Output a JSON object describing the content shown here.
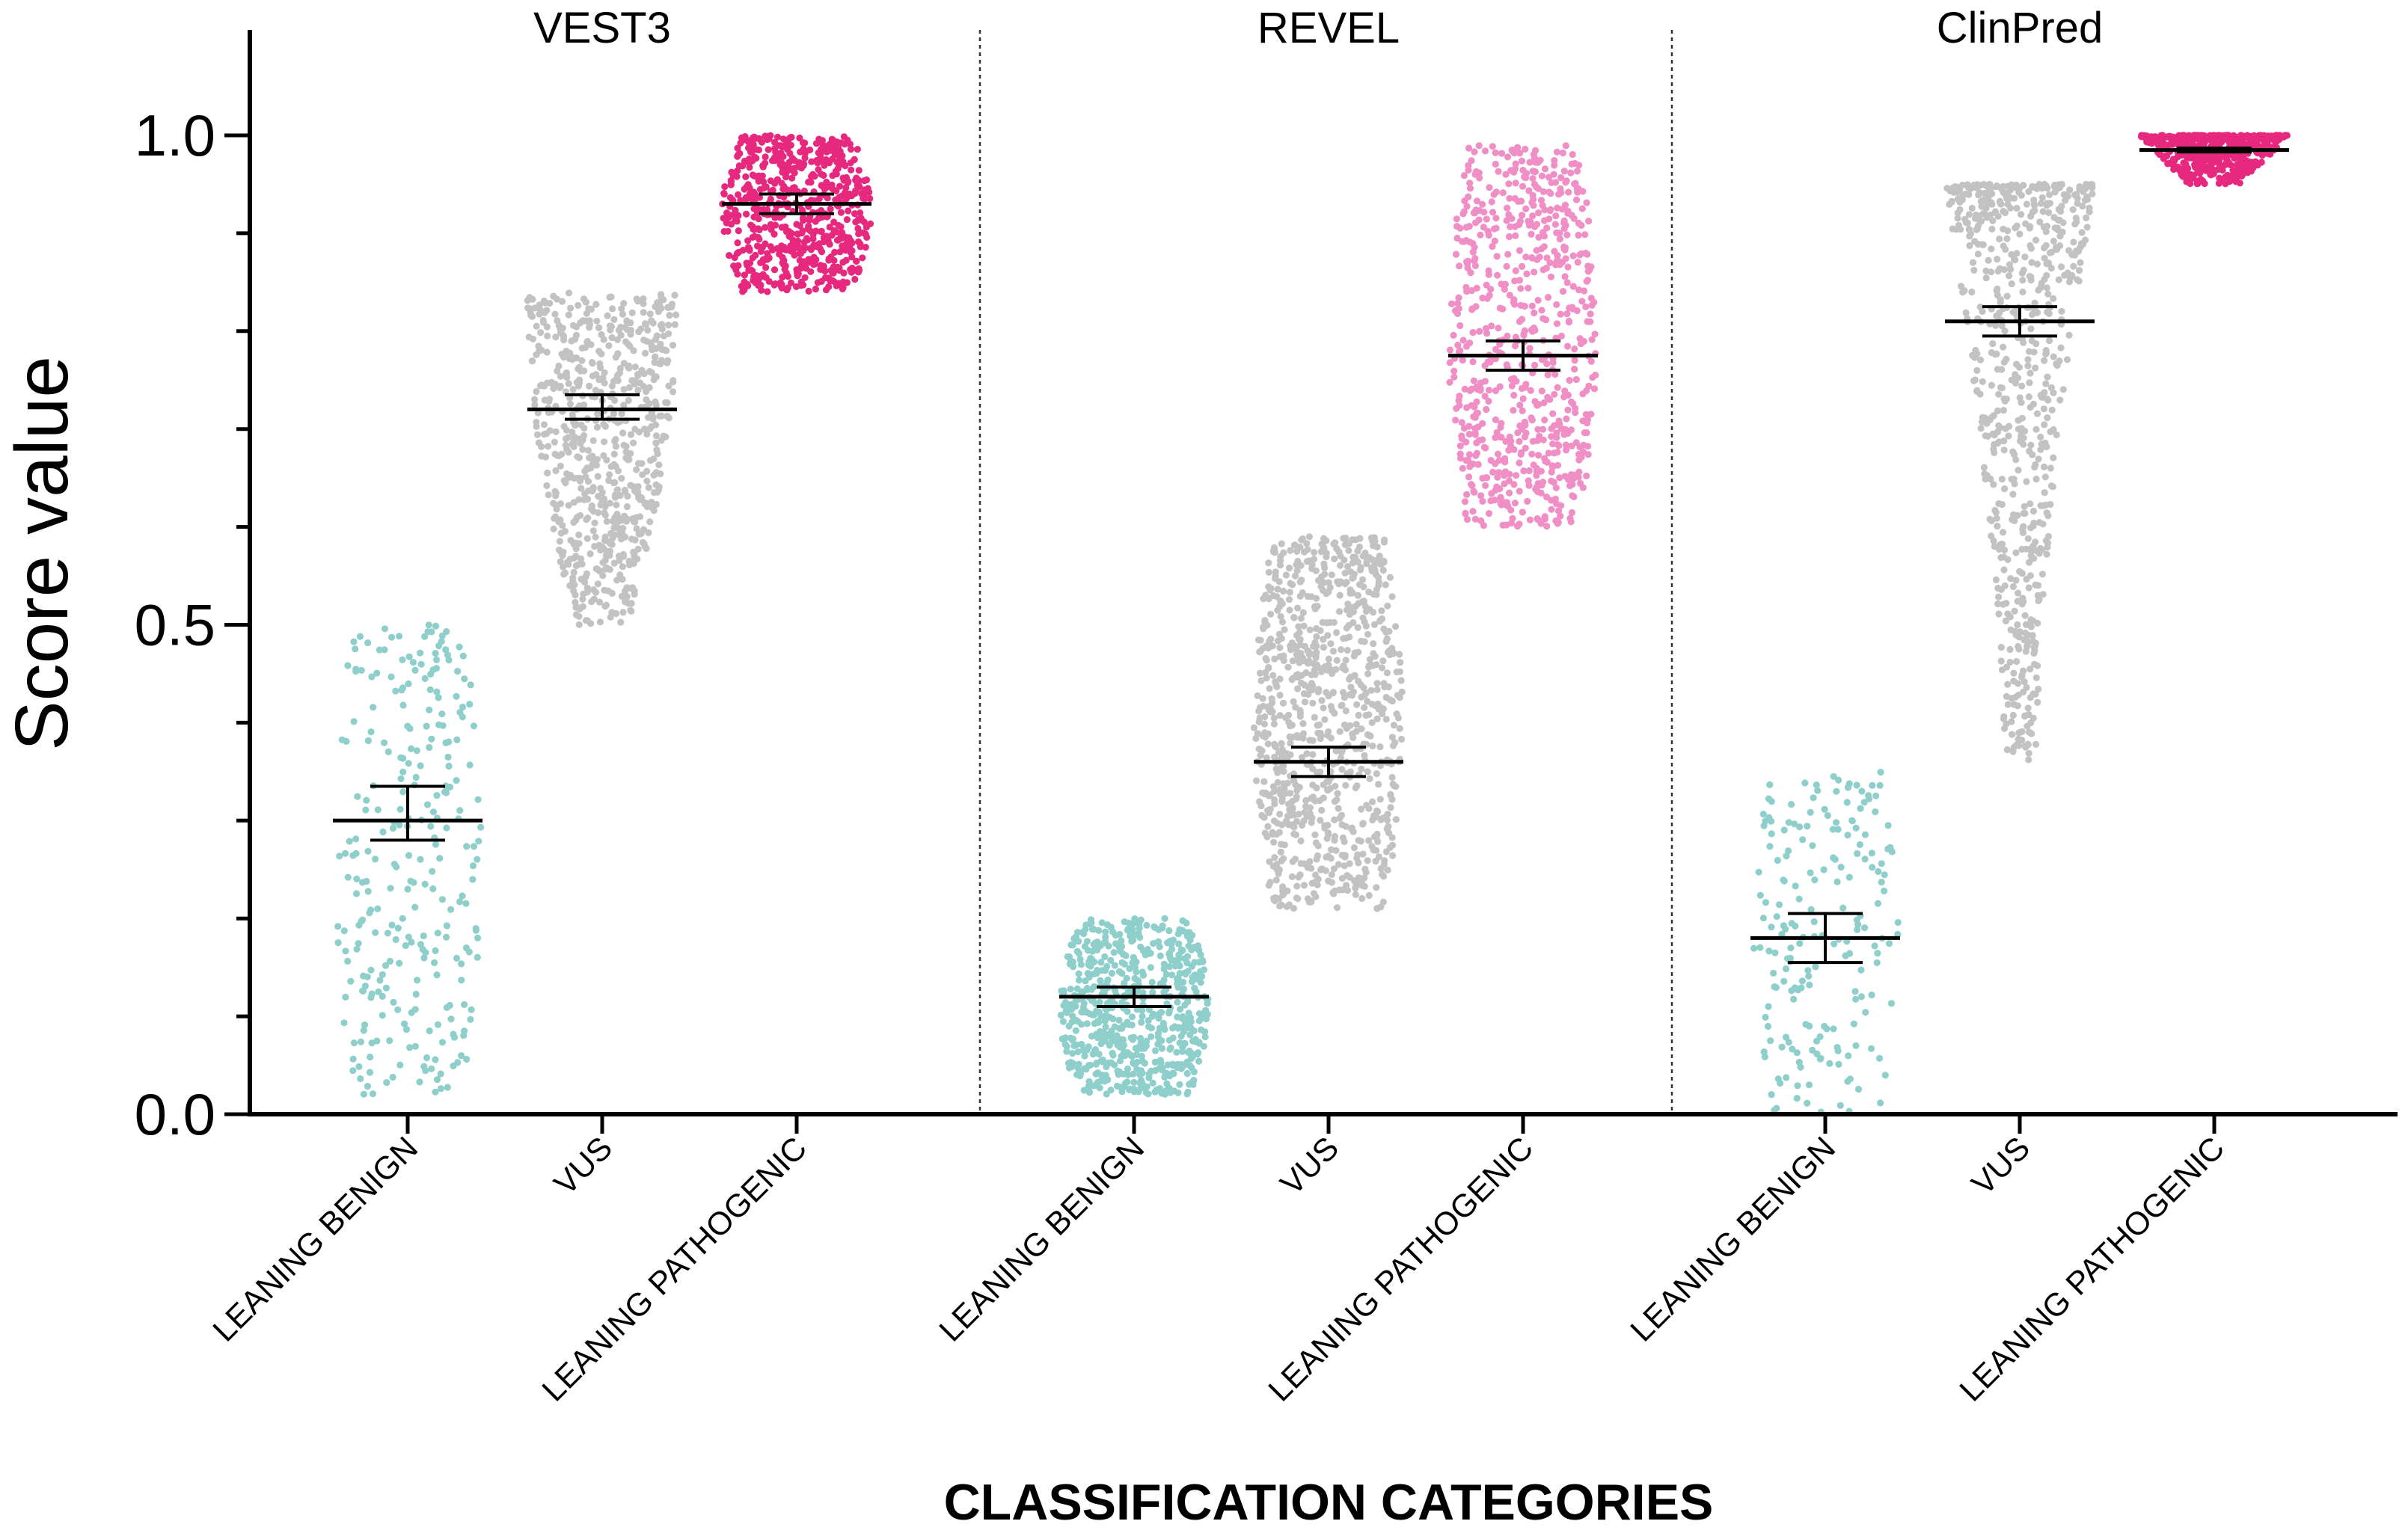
{
  "chart_data": {
    "type": "scatter",
    "subtype": "dot-plot with mean and 95% CI",
    "title": "",
    "xlabel": "CLASSIFICATION CATEGORIES",
    "ylabel": "Score value",
    "ylim": [
      0,
      1.1
    ],
    "yticks": [
      "0.0",
      "0.5",
      "1.0"
    ],
    "colors": {
      "LEANING BENIGN": "#8fcfcb",
      "VUS": "#c2c2c2",
      "LEANING PATHOGENIC": "#e7287f",
      "LEANING PATHOGENIC (REVEL)": "#ef8fc6"
    },
    "panels": [
      {
        "name": "VEST3",
        "groups": [
          {
            "category": "LEANING BENIGN",
            "range": [
              0.02,
              0.5
            ],
            "mean": 0.3,
            "ci": [
              0.28,
              0.335
            ],
            "n": 280
          },
          {
            "category": "VUS",
            "range": [
              0.5,
              0.84
            ],
            "mean": 0.72,
            "ci": [
              0.71,
              0.735
            ],
            "n": 700
          },
          {
            "category": "LEANING PATHOGENIC",
            "range": [
              0.84,
              1.0
            ],
            "mean": 0.93,
            "ci": [
              0.92,
              0.94
            ],
            "n": 650
          }
        ]
      },
      {
        "name": "REVEL",
        "groups": [
          {
            "category": "LEANING BENIGN",
            "range": [
              0.02,
              0.2
            ],
            "mean": 0.12,
            "ci": [
              0.11,
              0.13
            ],
            "n": 650
          },
          {
            "category": "VUS",
            "range": [
              0.21,
              0.59
            ],
            "mean": 0.36,
            "ci": [
              0.345,
              0.375
            ],
            "n": 900
          },
          {
            "category": "LEANING PATHOGENIC",
            "range": [
              0.6,
              0.99
            ],
            "mean": 0.775,
            "ci": [
              0.76,
              0.79
            ],
            "n": 700
          }
        ]
      },
      {
        "name": "ClinPred",
        "groups": [
          {
            "category": "LEANING BENIGN",
            "range": [
              0.0,
              0.35
            ],
            "mean": 0.18,
            "ci": [
              0.155,
              0.205
            ],
            "n": 200
          },
          {
            "category": "VUS",
            "range": [
              0.36,
              0.95
            ],
            "mean": 0.81,
            "ci": [
              0.795,
              0.825
            ],
            "n": 700
          },
          {
            "category": "LEANING PATHOGENIC",
            "range": [
              0.95,
              1.0
            ],
            "mean": 0.985,
            "ci": [
              0.983,
              0.987
            ],
            "n": 500
          }
        ]
      }
    ]
  }
}
